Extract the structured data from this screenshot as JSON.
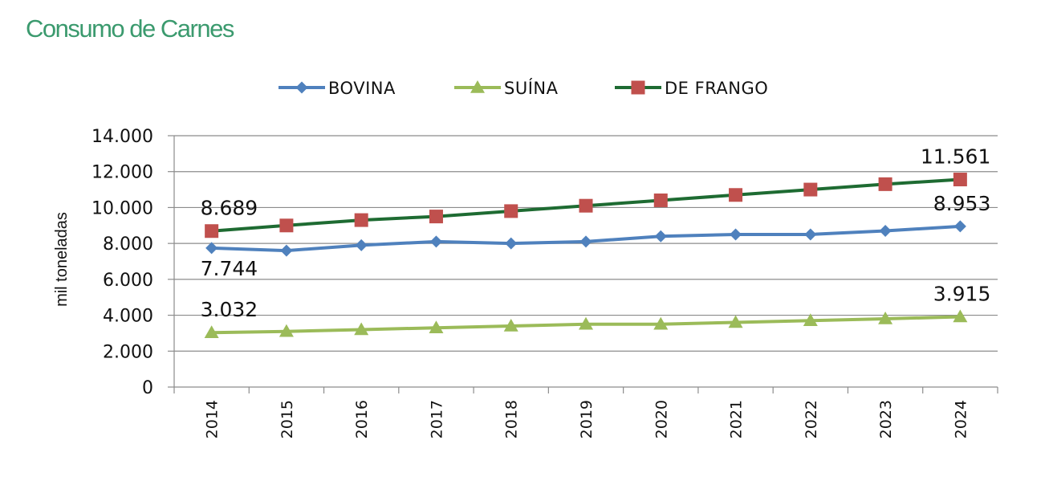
{
  "page_title": "Consumo de Carnes",
  "chart_data": {
    "type": "line",
    "title": "",
    "xlabel": "",
    "ylabel": "mil toneladas",
    "ylim": [
      0,
      14000
    ],
    "yticks": [
      0,
      2000,
      4000,
      6000,
      8000,
      10000,
      12000,
      14000
    ],
    "ytick_labels": [
      "0",
      "2.000",
      "4.000",
      "6.000",
      "8.000",
      "10.000",
      "12.000",
      "14.000"
    ],
    "categories": [
      "2014",
      "2015",
      "2016",
      "2017",
      "2018",
      "2019",
      "2020",
      "2021",
      "2022",
      "2023",
      "2024"
    ],
    "grid": true,
    "legend_position": "top",
    "series": [
      {
        "name": "BOVINA",
        "color": "#4f81bd",
        "marker": "diamond",
        "values": [
          7744,
          7600,
          7900,
          8100,
          8000,
          8100,
          8400,
          8500,
          8500,
          8700,
          8953
        ]
      },
      {
        "name": "SUÍNA",
        "color": "#9bbb59",
        "marker": "triangle",
        "values": [
          3032,
          3100,
          3200,
          3300,
          3400,
          3500,
          3500,
          3600,
          3700,
          3800,
          3915
        ]
      },
      {
        "name": "DE FRANGO",
        "color": "#1e6b32",
        "marker_color": "#c0504d",
        "marker": "square",
        "values": [
          8689,
          9000,
          9300,
          9500,
          9800,
          10100,
          10400,
          10700,
          11000,
          11300,
          11561
        ]
      }
    ],
    "annotations": [
      {
        "series": 2,
        "index": 0,
        "text": "8.689",
        "placement": "above"
      },
      {
        "series": 2,
        "index": 10,
        "text": "11.561",
        "placement": "above"
      },
      {
        "series": 0,
        "index": 0,
        "text": "7.744",
        "placement": "below"
      },
      {
        "series": 0,
        "index": 10,
        "text": "8.953",
        "placement": "above"
      },
      {
        "series": 1,
        "index": 0,
        "text": "3.032",
        "placement": "above"
      },
      {
        "series": 1,
        "index": 10,
        "text": "3.915",
        "placement": "above"
      }
    ]
  }
}
